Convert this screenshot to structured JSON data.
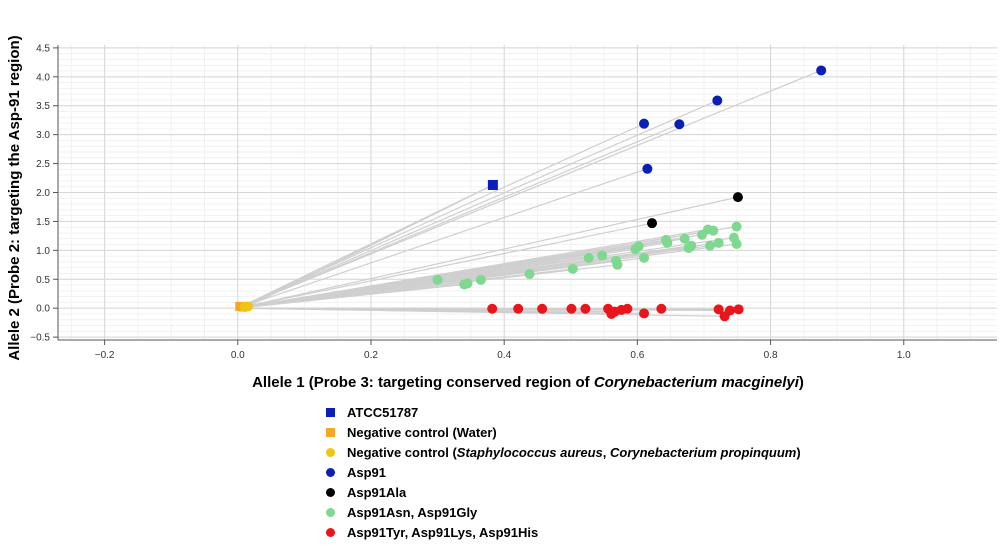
{
  "chart_data": {
    "type": "scatter",
    "xlabel": "Allele 1 (Probe 3: targeting conserved region of Corynebacterium macginelyi)",
    "xlabel_parts": [
      {
        "text": "Allele 1 (Probe 3: targeting conserved region of ",
        "italic": false
      },
      {
        "text": "Corynebacterium macginelyi",
        "italic": true
      },
      {
        "text": ")",
        "italic": false
      }
    ],
    "ylabel": "Allele 2 (Probe 2: targeting the Asp-91 region)",
    "xlim": [
      -0.27,
      1.14
    ],
    "ylim": [
      -0.55,
      4.55
    ],
    "x_ticks": [
      -0.2,
      0.0,
      0.2,
      0.4,
      0.6,
      0.8,
      1.0
    ],
    "x_tick_labels": [
      "−0.2",
      "0.0",
      "0.2",
      "0.4",
      "0.6",
      "0.8",
      "1.0"
    ],
    "y_ticks": [
      -0.5,
      0.0,
      0.5,
      1.0,
      1.5,
      2.0,
      2.5,
      3.0,
      3.5,
      4.0,
      4.5
    ],
    "y_tick_labels": [
      "−0.5",
      "0.0",
      "0.5",
      "1.0",
      "1.5",
      "2.0",
      "2.5",
      "3.0",
      "3.5",
      "4.0",
      "4.5"
    ],
    "x_minor_step": 0.05,
    "y_minor_step": 0.1,
    "grid": true,
    "trajectory_lines": true,
    "legend_position": "bottom",
    "series": [
      {
        "name": "ATCC51787",
        "color": "#0a1fb8",
        "marker": "square",
        "points": [
          [
            0.383,
            2.13
          ]
        ]
      },
      {
        "name": "Negative control (Water)",
        "color": "#f5a623",
        "marker": "square",
        "points": [
          [
            0.003,
            0.03
          ],
          [
            0.008,
            0.02
          ],
          [
            0.012,
            0.03
          ]
        ]
      },
      {
        "name": "Negative control (Staphylococcus aureus, Corynebacterium propinquum)",
        "color": "#f2c30f",
        "marker": "circle",
        "name_parts": [
          {
            "text": "Negative control (",
            "italic": false
          },
          {
            "text": "Staphylococcus aureus",
            "italic": true
          },
          {
            "text": ", ",
            "italic": false
          },
          {
            "text": "Corynebacterium propinquum",
            "italic": true
          },
          {
            "text": ")",
            "italic": false
          }
        ],
        "points": [
          [
            0.01,
            0.02
          ],
          [
            0.015,
            0.03
          ]
        ]
      },
      {
        "name": "Asp91",
        "color": "#0a1fb8",
        "marker": "circle",
        "points": [
          [
            0.876,
            4.11
          ],
          [
            0.72,
            3.59
          ],
          [
            0.61,
            3.19
          ],
          [
            0.663,
            3.18
          ],
          [
            0.615,
            2.41
          ]
        ]
      },
      {
        "name": "Asp91Ala",
        "color": "#000000",
        "marker": "circle",
        "points": [
          [
            0.751,
            1.92
          ],
          [
            0.622,
            1.47
          ]
        ]
      },
      {
        "name": "Asp91Asn, Asp91Gly",
        "color": "#7fd88f",
        "marker": "circle",
        "points": [
          [
            0.3,
            0.49
          ],
          [
            0.34,
            0.41
          ],
          [
            0.345,
            0.43
          ],
          [
            0.365,
            0.49
          ],
          [
            0.438,
            0.59
          ],
          [
            0.503,
            0.68
          ],
          [
            0.527,
            0.87
          ],
          [
            0.547,
            0.91
          ],
          [
            0.568,
            0.82
          ],
          [
            0.57,
            0.75
          ],
          [
            0.597,
            1.02
          ],
          [
            0.602,
            1.07
          ],
          [
            0.61,
            0.87
          ],
          [
            0.643,
            1.18
          ],
          [
            0.645,
            1.13
          ],
          [
            0.671,
            1.2
          ],
          [
            0.677,
            1.04
          ],
          [
            0.681,
            1.08
          ],
          [
            0.697,
            1.27
          ],
          [
            0.706,
            1.36
          ],
          [
            0.709,
            1.08
          ],
          [
            0.714,
            1.34
          ],
          [
            0.722,
            1.13
          ],
          [
            0.745,
            1.22
          ],
          [
            0.749,
            1.41
          ],
          [
            0.749,
            1.11
          ]
        ]
      },
      {
        "name": "Asp91Tyr, Asp91Lys, Asp91His",
        "color": "#e8161b",
        "marker": "circle",
        "points": [
          [
            0.382,
            -0.01
          ],
          [
            0.421,
            -0.01
          ],
          [
            0.457,
            -0.01
          ],
          [
            0.501,
            -0.01
          ],
          [
            0.522,
            -0.01
          ],
          [
            0.556,
            -0.01
          ],
          [
            0.561,
            -0.1
          ],
          [
            0.566,
            -0.06
          ],
          [
            0.576,
            -0.03
          ],
          [
            0.585,
            -0.01
          ],
          [
            0.61,
            -0.09
          ],
          [
            0.636,
            -0.01
          ],
          [
            0.722,
            -0.02
          ],
          [
            0.731,
            -0.14
          ],
          [
            0.739,
            -0.04
          ],
          [
            0.752,
            -0.02
          ]
        ]
      }
    ]
  }
}
